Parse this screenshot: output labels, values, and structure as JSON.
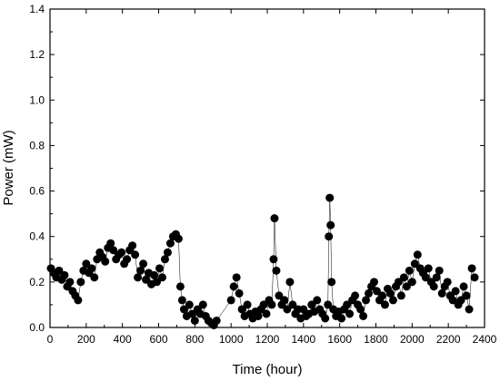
{
  "chart_data": {
    "type": "scatter",
    "title": "",
    "xlabel": "Time (hour)",
    "ylabel": "Power (mW)",
    "xlim": [
      0,
      2400
    ],
    "ylim": [
      0.0,
      1.4
    ],
    "x_ticks": [
      0,
      200,
      400,
      600,
      800,
      1000,
      1200,
      1400,
      1600,
      1800,
      2000,
      2200,
      2400
    ],
    "y_ticks": [
      0.0,
      0.2,
      0.4,
      0.6,
      0.8,
      1.0,
      1.2,
      1.4
    ],
    "x_tick_labels": [
      "0",
      "200",
      "400",
      "600",
      "800",
      "1000",
      "1200",
      "1400",
      "1600",
      "1800",
      "2000",
      "2200",
      "2400"
    ],
    "y_tick_labels": [
      "0.0",
      "0.2",
      "0.4",
      "0.6",
      "0.8",
      "1.0",
      "1.2",
      "1.4"
    ],
    "grid": false,
    "legend": "none",
    "marker_color": "#000000",
    "series": [
      {
        "x": [
          5,
          20,
          35,
          50,
          65,
          80,
          95,
          110,
          125,
          140,
          155,
          170,
          185,
          200,
          215,
          230,
          245,
          260,
          275,
          290,
          305,
          320,
          335,
          350,
          365,
          380,
          395,
          410,
          425,
          440,
          455,
          470,
          485,
          500,
          515,
          530,
          545,
          560,
          575,
          590,
          605,
          620,
          635,
          650,
          665,
          680,
          695,
          710,
          720,
          730,
          740,
          755,
          770,
          785,
          800,
          815,
          830,
          845,
          860,
          875,
          890,
          905,
          920,
          1000,
          1015,
          1030,
          1045,
          1060,
          1075,
          1090,
          1105,
          1120,
          1135,
          1150,
          1165,
          1180,
          1195,
          1210,
          1225,
          1235,
          1240,
          1250,
          1265,
          1280,
          1295,
          1310,
          1325,
          1340,
          1355,
          1370,
          1385,
          1400,
          1415,
          1430,
          1445,
          1460,
          1475,
          1490,
          1505,
          1520,
          1535,
          1540,
          1545,
          1550,
          1555,
          1565,
          1580,
          1595,
          1610,
          1625,
          1640,
          1655,
          1670,
          1685,
          1700,
          1715,
          1730,
          1745,
          1760,
          1775,
          1790,
          1805,
          1820,
          1835,
          1850,
          1865,
          1880,
          1895,
          1910,
          1925,
          1940,
          1955,
          1970,
          1985,
          2000,
          2015,
          2030,
          2045,
          2060,
          2075,
          2090,
          2105,
          2120,
          2135,
          2150,
          2165,
          2180,
          2195,
          2210,
          2225,
          2240,
          2255,
          2270,
          2285,
          2300,
          2315,
          2330,
          2345
        ],
        "y": [
          0.26,
          0.24,
          0.22,
          0.25,
          0.21,
          0.23,
          0.18,
          0.2,
          0.16,
          0.14,
          0.12,
          0.2,
          0.25,
          0.28,
          0.24,
          0.26,
          0.22,
          0.3,
          0.33,
          0.31,
          0.29,
          0.35,
          0.37,
          0.34,
          0.3,
          0.32,
          0.33,
          0.28,
          0.3,
          0.34,
          0.36,
          0.32,
          0.22,
          0.25,
          0.28,
          0.21,
          0.24,
          0.19,
          0.23,
          0.2,
          0.26,
          0.22,
          0.3,
          0.33,
          0.37,
          0.4,
          0.41,
          0.39,
          0.18,
          0.12,
          0.08,
          0.05,
          0.1,
          0.06,
          0.03,
          0.08,
          0.06,
          0.1,
          0.05,
          0.03,
          0.02,
          0.01,
          0.03,
          0.12,
          0.18,
          0.22,
          0.15,
          0.08,
          0.05,
          0.1,
          0.06,
          0.04,
          0.07,
          0.05,
          0.08,
          0.1,
          0.06,
          0.12,
          0.1,
          0.3,
          0.48,
          0.25,
          0.14,
          0.1,
          0.12,
          0.08,
          0.2,
          0.1,
          0.06,
          0.08,
          0.04,
          0.08,
          0.05,
          0.06,
          0.1,
          0.07,
          0.12,
          0.08,
          0.06,
          0.04,
          0.1,
          0.4,
          0.57,
          0.45,
          0.2,
          0.08,
          0.05,
          0.07,
          0.04,
          0.08,
          0.1,
          0.06,
          0.12,
          0.14,
          0.1,
          0.08,
          0.05,
          0.12,
          0.15,
          0.18,
          0.2,
          0.16,
          0.12,
          0.14,
          0.1,
          0.17,
          0.15,
          0.12,
          0.18,
          0.2,
          0.14,
          0.22,
          0.18,
          0.25,
          0.2,
          0.28,
          0.32,
          0.26,
          0.24,
          0.22,
          0.26,
          0.2,
          0.18,
          0.22,
          0.25,
          0.15,
          0.18,
          0.2,
          0.14,
          0.12,
          0.16,
          0.1,
          0.12,
          0.18,
          0.14,
          0.08,
          0.26,
          0.22
        ]
      }
    ]
  }
}
